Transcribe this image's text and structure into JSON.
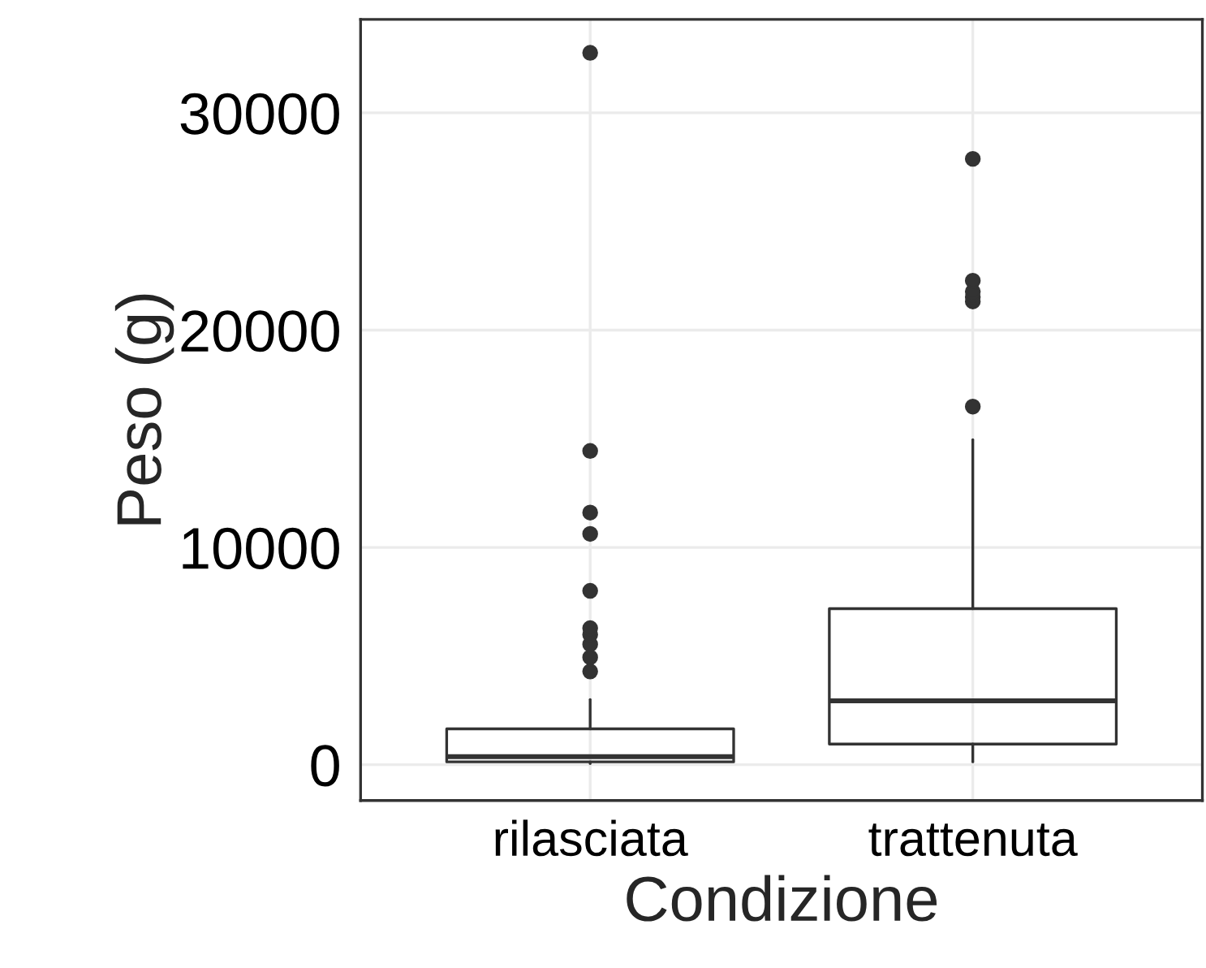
{
  "chart_data": {
    "type": "box",
    "xlabel": "Condizione",
    "ylabel": "Peso (g)",
    "categories": [
      "rilasciata",
      "trattenuta"
    ],
    "boxes": [
      {
        "low": 50,
        "q1": 130,
        "median": 370,
        "q3": 1650,
        "high": 3000,
        "outliers": [
          4290,
          4940,
          5540,
          5980,
          6280,
          8000,
          10620,
          11600,
          14440,
          32760
        ]
      },
      {
        "low": 130,
        "q1": 950,
        "median": 2940,
        "q3": 7180,
        "high": 14960,
        "outliers": [
          16480,
          21320,
          21520,
          21770,
          22270,
          27880
        ]
      }
    ],
    "color": "#333333",
    "ylim": [
      -1650,
      34300
    ],
    "yticks": [
      0,
      10000,
      20000,
      30000
    ],
    "grid": true
  }
}
